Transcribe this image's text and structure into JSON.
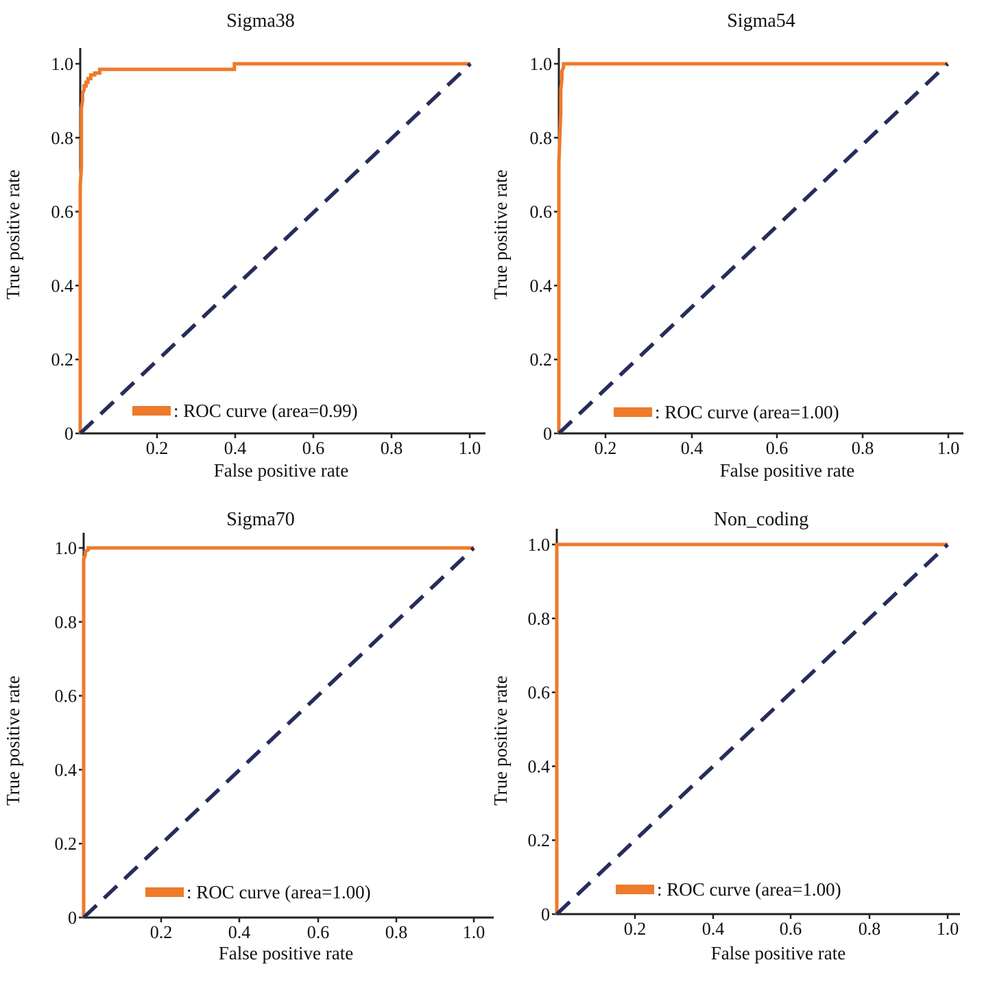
{
  "colors": {
    "roc_curve": "#ee7a2b",
    "diagonal": "#262d5a",
    "axes": "#222222"
  },
  "chart_data": [
    {
      "type": "line",
      "title": "Sigma38",
      "xlabel": "False positive rate",
      "ylabel": "True positive rate",
      "xlim": [
        0,
        1.0
      ],
      "ylim": [
        0,
        1.0
      ],
      "xticks": [
        "0.2",
        "0.4",
        "0.6",
        "0.8",
        "1.0"
      ],
      "yticks": [
        "0",
        "0.2",
        "0.4",
        "0.6",
        "0.8",
        "1.0"
      ],
      "legend_label": ": ROC curve (area=0.99)",
      "legend_position": "bottom",
      "grid": false,
      "series": [
        {
          "name": "ROC curve",
          "x": [
            0,
            0,
            0.003,
            0.003,
            0.006,
            0.006,
            0.01,
            0.01,
            0.015,
            0.015,
            0.02,
            0.02,
            0.027,
            0.027,
            0.037,
            0.037,
            0.05,
            0.05,
            0.395,
            0.395,
            1.0
          ],
          "y": [
            0,
            0.67,
            0.72,
            0.88,
            0.9,
            0.92,
            0.93,
            0.94,
            0.94,
            0.95,
            0.95,
            0.96,
            0.96,
            0.97,
            0.97,
            0.975,
            0.975,
            0.985,
            0.985,
            1.0,
            1.0
          ]
        },
        {
          "name": "diagonal",
          "style": "dashed",
          "x": [
            0,
            1.0
          ],
          "y": [
            0,
            1.0
          ]
        }
      ]
    },
    {
      "type": "line",
      "title": "Sigma54",
      "xlabel": "False positive rate",
      "ylabel": "True positive rate",
      "xlim": [
        0,
        1.0
      ],
      "ylim": [
        0,
        1.0
      ],
      "xticks": [
        "0.2",
        "0.4",
        "0.6",
        "0.8",
        "1.0"
      ],
      "yticks": [
        "0",
        "0.2",
        "0.4",
        "0.6",
        "0.8",
        "1.0"
      ],
      "legend_label": ": ROC curve (area=1.00)",
      "legend_position": "bottom",
      "grid": false,
      "series": [
        {
          "name": "ROC curve",
          "x": [
            0,
            0,
            0.005,
            0.005,
            0.008,
            0.008,
            0.012,
            0.012,
            1.0
          ],
          "y": [
            0,
            0.73,
            0.87,
            0.93,
            0.96,
            0.98,
            0.99,
            1.0,
            1.0
          ]
        },
        {
          "name": "diagonal",
          "style": "dashed",
          "x": [
            0,
            1.0
          ],
          "y": [
            0,
            1.0
          ]
        }
      ]
    },
    {
      "type": "line",
      "title": "Sigma70",
      "xlabel": "False positive rate",
      "ylabel": "True positive rate",
      "xlim": [
        0,
        1.0
      ],
      "ylim": [
        0,
        1.0
      ],
      "xticks": [
        "0.2",
        "0.4",
        "0.6",
        "0.8",
        "1.0"
      ],
      "yticks": [
        "0",
        "0.2",
        "0.4",
        "0.6",
        "0.8",
        "1.0"
      ],
      "legend_label": ": ROC curve (area=1.00)",
      "legend_position": "bottom",
      "grid": false,
      "series": [
        {
          "name": "ROC curve",
          "x": [
            0,
            0,
            0.004,
            0.004,
            0.012,
            0.012,
            1.0
          ],
          "y": [
            0,
            0.97,
            0.98,
            0.99,
            0.995,
            1.0,
            1.0
          ]
        },
        {
          "name": "diagonal",
          "style": "dashed",
          "x": [
            0,
            1.0
          ],
          "y": [
            0,
            1.0
          ]
        }
      ]
    },
    {
      "type": "line",
      "title": "Non_coding",
      "xlabel": "False positive rate",
      "ylabel": "True positive rate",
      "xlim": [
        0,
        1.0
      ],
      "ylim": [
        0,
        1.0
      ],
      "xticks": [
        "0.2",
        "0.4",
        "0.6",
        "0.8",
        "1.0"
      ],
      "yticks": [
        "0",
        "0.2",
        "0.4",
        "0.6",
        "0.8",
        "1.0"
      ],
      "legend_label": ": ROC curve (area=1.00)",
      "legend_position": "bottom",
      "grid": false,
      "series": [
        {
          "name": "ROC curve",
          "x": [
            0,
            0,
            1.0
          ],
          "y": [
            0,
            1.0,
            1.0
          ]
        },
        {
          "name": "diagonal",
          "style": "dashed",
          "x": [
            0,
            1.0
          ],
          "y": [
            0,
            1.0
          ]
        }
      ]
    }
  ]
}
